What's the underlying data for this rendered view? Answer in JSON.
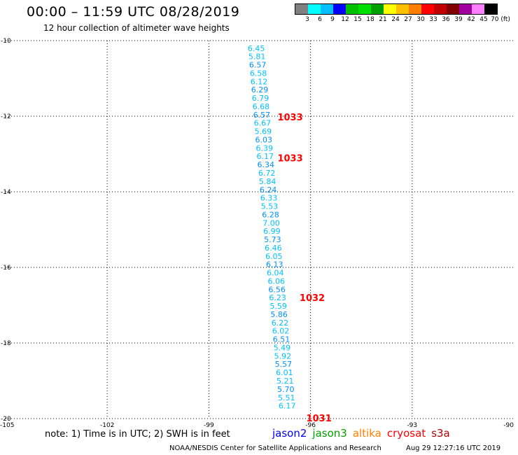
{
  "header": {
    "title": "00:00 – 11:59 UTC 08/28/2019",
    "subtitle": "12 hour collection of altimeter wave heights"
  },
  "color_legend": {
    "colors": [
      "#808080",
      "#00ffff",
      "#00c0ff",
      "#0000ff",
      "#00c000",
      "#00e000",
      "#00a000",
      "#ffff00",
      "#ffc000",
      "#ff8000",
      "#ff0000",
      "#c00000",
      "#800000",
      "#a000a0",
      "#ff80ff",
      "#000000"
    ],
    "labels": [
      "3",
      "6",
      "9",
      "12",
      "15",
      "18",
      "21",
      "24",
      "27",
      "30",
      "33",
      "36",
      "39",
      "42",
      "45",
      "70 (ft)"
    ]
  },
  "chart_data": {
    "type": "scatter",
    "xlim": [
      -105,
      -90
    ],
    "ylim": [
      -20,
      -10
    ],
    "x_ticks": [
      -105,
      -102,
      -99,
      -96,
      -93,
      -90
    ],
    "y_ticks": [
      -10,
      -12,
      -14,
      -16,
      -18,
      -20
    ],
    "x_tick_labels": [
      "-105",
      "-102",
      "-99",
      "-96",
      "-93",
      "-90"
    ],
    "y_tick_labels": [
      "-10",
      "-12",
      "-14",
      "-16",
      "-18",
      "-20"
    ],
    "grid": true,
    "wave_color_light": "#00c0ff",
    "wave_color_mid": "#0090ff",
    "pressure_color": "#ff0000",
    "wave_heights": [
      {
        "lon": -97.6,
        "lat": -10.2,
        "swh": "6.45"
      },
      {
        "lon": -97.58,
        "lat": -10.42,
        "swh": "5.81"
      },
      {
        "lon": -97.56,
        "lat": -10.64,
        "swh": "6.57"
      },
      {
        "lon": -97.54,
        "lat": -10.86,
        "swh": "6.58"
      },
      {
        "lon": -97.52,
        "lat": -11.08,
        "swh": "6.12"
      },
      {
        "lon": -97.5,
        "lat": -11.3,
        "swh": "6.29"
      },
      {
        "lon": -97.48,
        "lat": -11.52,
        "swh": "6.79"
      },
      {
        "lon": -97.46,
        "lat": -11.74,
        "swh": "6.68"
      },
      {
        "lon": -97.44,
        "lat": -11.96,
        "swh": "6.57"
      },
      {
        "lon": -97.42,
        "lat": -12.18,
        "swh": "6.67"
      },
      {
        "lon": -97.4,
        "lat": -12.4,
        "swh": "5.69"
      },
      {
        "lon": -97.38,
        "lat": -12.62,
        "swh": "6.03"
      },
      {
        "lon": -97.36,
        "lat": -12.84,
        "swh": "6.39"
      },
      {
        "lon": -97.34,
        "lat": -13.06,
        "swh": "6.17"
      },
      {
        "lon": -97.32,
        "lat": -13.28,
        "swh": "6.34"
      },
      {
        "lon": -97.29,
        "lat": -13.5,
        "swh": "6.72"
      },
      {
        "lon": -97.27,
        "lat": -13.72,
        "swh": "5.84"
      },
      {
        "lon": -97.25,
        "lat": -13.94,
        "swh": "6.24"
      },
      {
        "lon": -97.23,
        "lat": -14.16,
        "swh": "6.33"
      },
      {
        "lon": -97.21,
        "lat": -14.38,
        "swh": "5.53"
      },
      {
        "lon": -97.18,
        "lat": -14.6,
        "swh": "6.28"
      },
      {
        "lon": -97.16,
        "lat": -14.82,
        "swh": "7.00"
      },
      {
        "lon": -97.14,
        "lat": -15.04,
        "swh": "6.99"
      },
      {
        "lon": -97.12,
        "lat": -15.26,
        "swh": "5.73"
      },
      {
        "lon": -97.1,
        "lat": -15.48,
        "swh": "6.46"
      },
      {
        "lon": -97.08,
        "lat": -15.7,
        "swh": "6.05"
      },
      {
        "lon": -97.06,
        "lat": -15.92,
        "swh": "6.13"
      },
      {
        "lon": -97.04,
        "lat": -16.14,
        "swh": "6.04"
      },
      {
        "lon": -97.01,
        "lat": -16.36,
        "swh": "6.06"
      },
      {
        "lon": -96.99,
        "lat": -16.58,
        "swh": "6.56"
      },
      {
        "lon": -96.97,
        "lat": -16.8,
        "swh": "6.23"
      },
      {
        "lon": -96.95,
        "lat": -17.02,
        "swh": "5.59"
      },
      {
        "lon": -96.93,
        "lat": -17.24,
        "swh": "5.86"
      },
      {
        "lon": -96.9,
        "lat": -17.46,
        "swh": "6.22"
      },
      {
        "lon": -96.88,
        "lat": -17.68,
        "swh": "6.02"
      },
      {
        "lon": -96.86,
        "lat": -17.9,
        "swh": "6.51"
      },
      {
        "lon": -96.84,
        "lat": -18.12,
        "swh": "5.49"
      },
      {
        "lon": -96.82,
        "lat": -18.34,
        "swh": "5.92"
      },
      {
        "lon": -96.8,
        "lat": -18.56,
        "swh": "5.57"
      },
      {
        "lon": -96.77,
        "lat": -18.78,
        "swh": "6.01"
      },
      {
        "lon": -96.75,
        "lat": -19.0,
        "swh": "5.21"
      },
      {
        "lon": -96.73,
        "lat": -19.22,
        "swh": "5.70"
      },
      {
        "lon": -96.71,
        "lat": -19.44,
        "swh": "5.51"
      },
      {
        "lon": -96.69,
        "lat": -19.66,
        "swh": "6.17"
      }
    ],
    "pressure_labels": [
      {
        "lon": -96.6,
        "lat": -12.02,
        "text": "1033"
      },
      {
        "lon": -96.6,
        "lat": -13.1,
        "text": "1033"
      },
      {
        "lon": -95.95,
        "lat": -16.8,
        "text": "1032"
      },
      {
        "lon": -95.75,
        "lat": -19.98,
        "text": "1031"
      }
    ]
  },
  "footnotes": {
    "note": "note:  1) Time is in UTC; 2) SWH is in feet",
    "credit": "NOAA/NESDIS Center for Satellite Applications and Research",
    "timestamp": "Aug 29 12:27:16 UTC 2019"
  },
  "satellite_legend": [
    {
      "name": "jason2",
      "color": "#0000ff"
    },
    {
      "name": "jason3",
      "color": "#00a000"
    },
    {
      "name": "altika",
      "color": "#ff8000"
    },
    {
      "name": "cryosat",
      "color": "#ff0000"
    },
    {
      "name": "s3a",
      "color": "#b00000"
    }
  ]
}
